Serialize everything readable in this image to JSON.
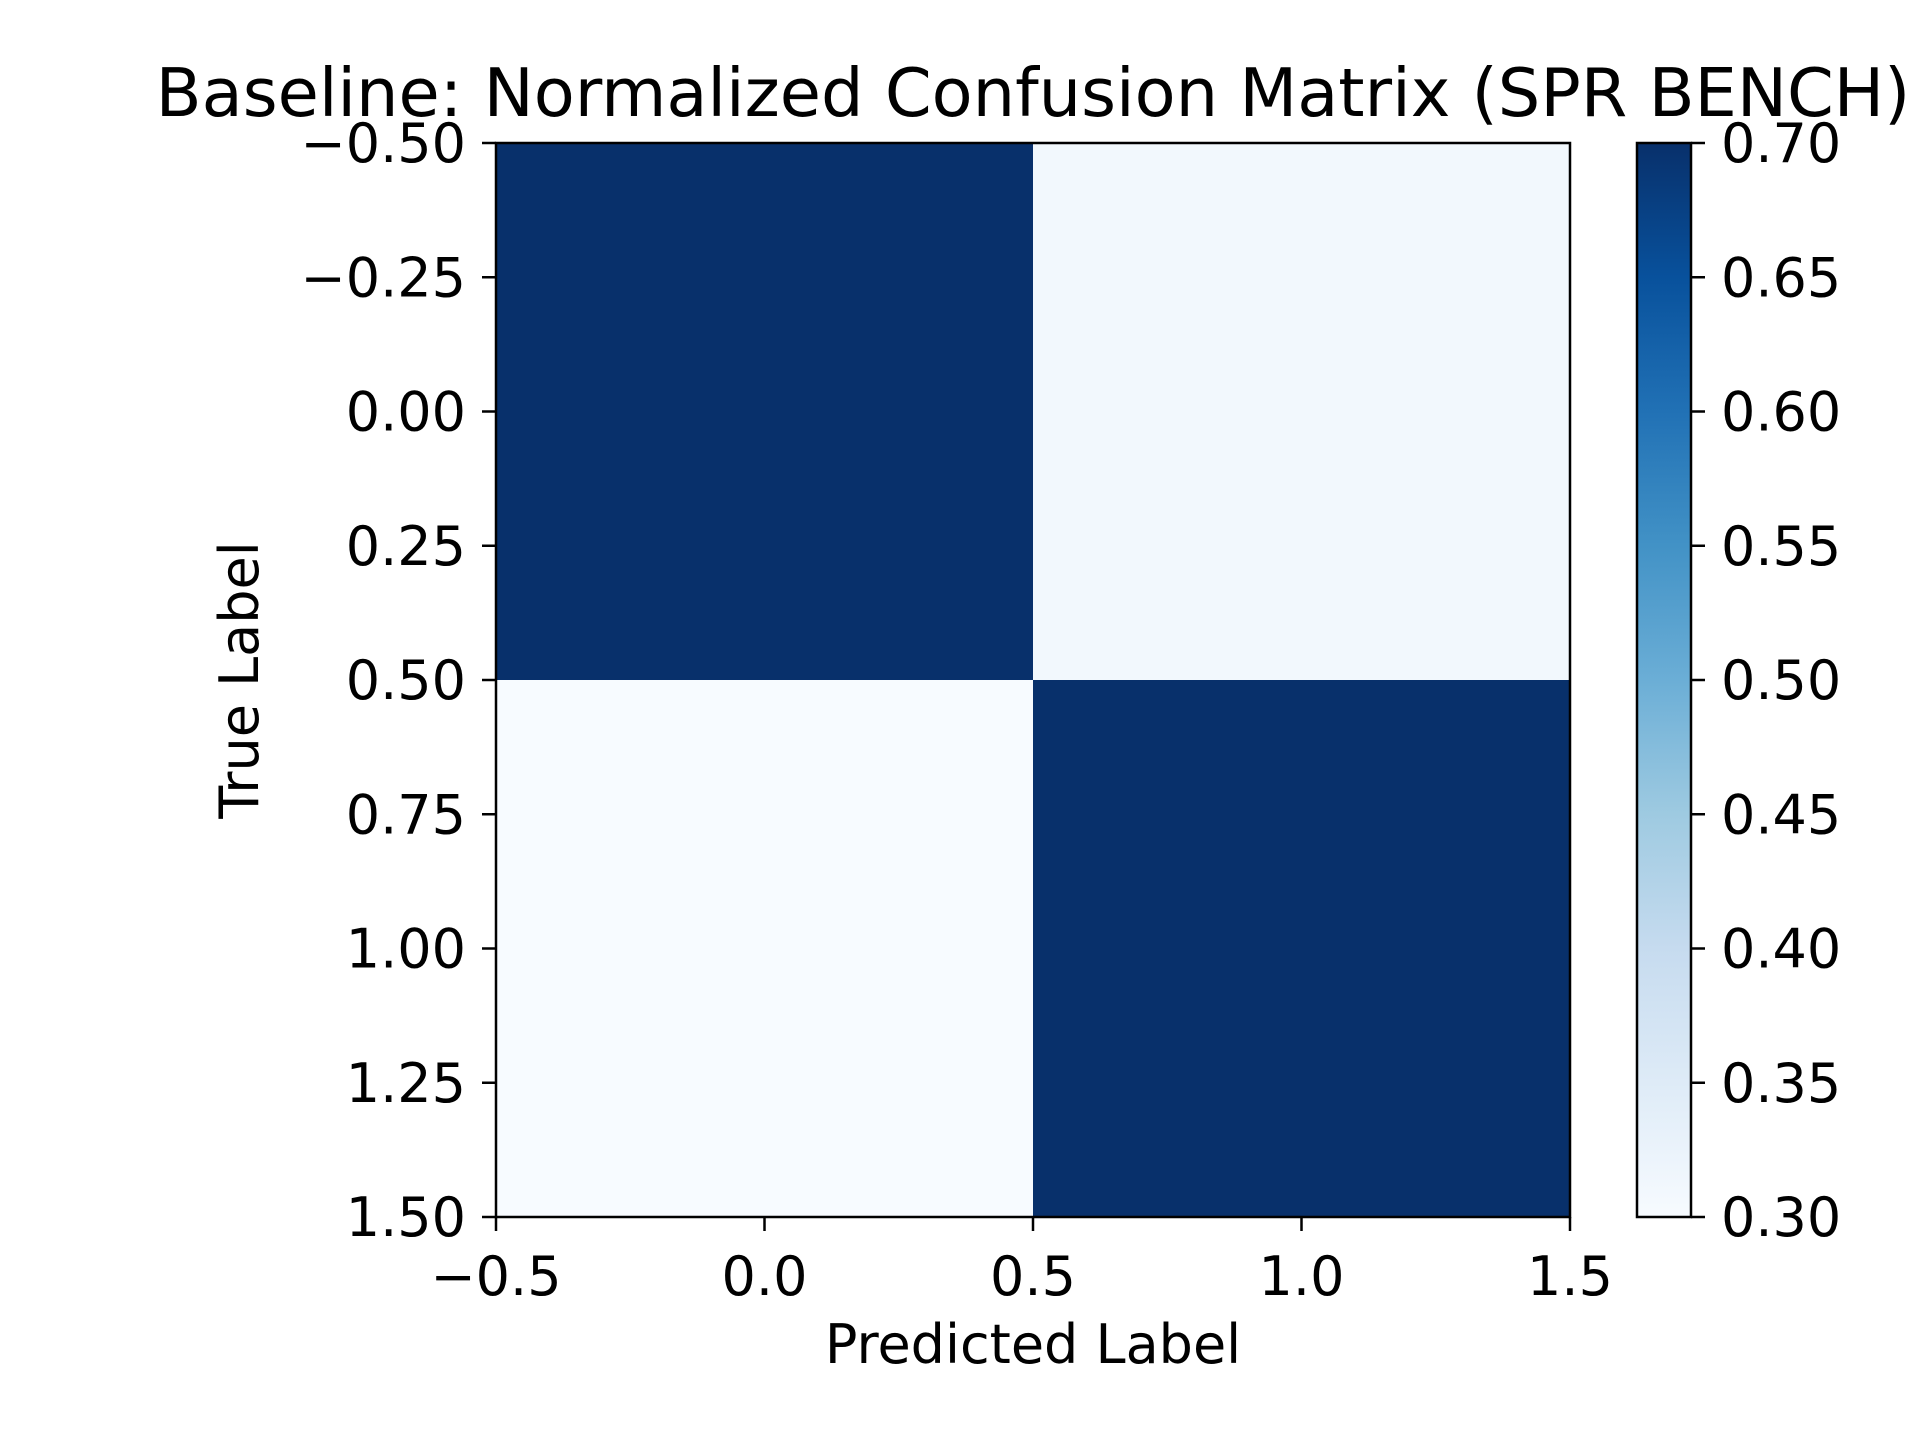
{
  "chart_data": {
    "type": "heatmap",
    "title": "Baseline: Normalized Confusion Matrix (SPR BENCH)",
    "xlabel": "Predicted Label",
    "ylabel": "True Label",
    "xlim": [
      -0.5,
      1.5
    ],
    "ylim": [
      1.5,
      -0.5
    ],
    "x_ticks": [
      "−0.5",
      "0.0",
      "0.5",
      "1.0",
      "1.5"
    ],
    "y_ticks": [
      "−0.50",
      "−0.25",
      "0.00",
      "0.25",
      "0.50",
      "0.75",
      "1.00",
      "1.25",
      "1.50"
    ],
    "rows": [
      0,
      1
    ],
    "cols": [
      0,
      1
    ],
    "matrix": [
      [
        0.7,
        0.31
      ],
      [
        0.3,
        0.7
      ]
    ],
    "colorbar": {
      "colormap": "Blues",
      "range": [
        0.3,
        0.7
      ],
      "ticks": [
        "0.30",
        "0.35",
        "0.40",
        "0.45",
        "0.50",
        "0.55",
        "0.60",
        "0.65",
        "0.70"
      ]
    },
    "grid": false
  }
}
